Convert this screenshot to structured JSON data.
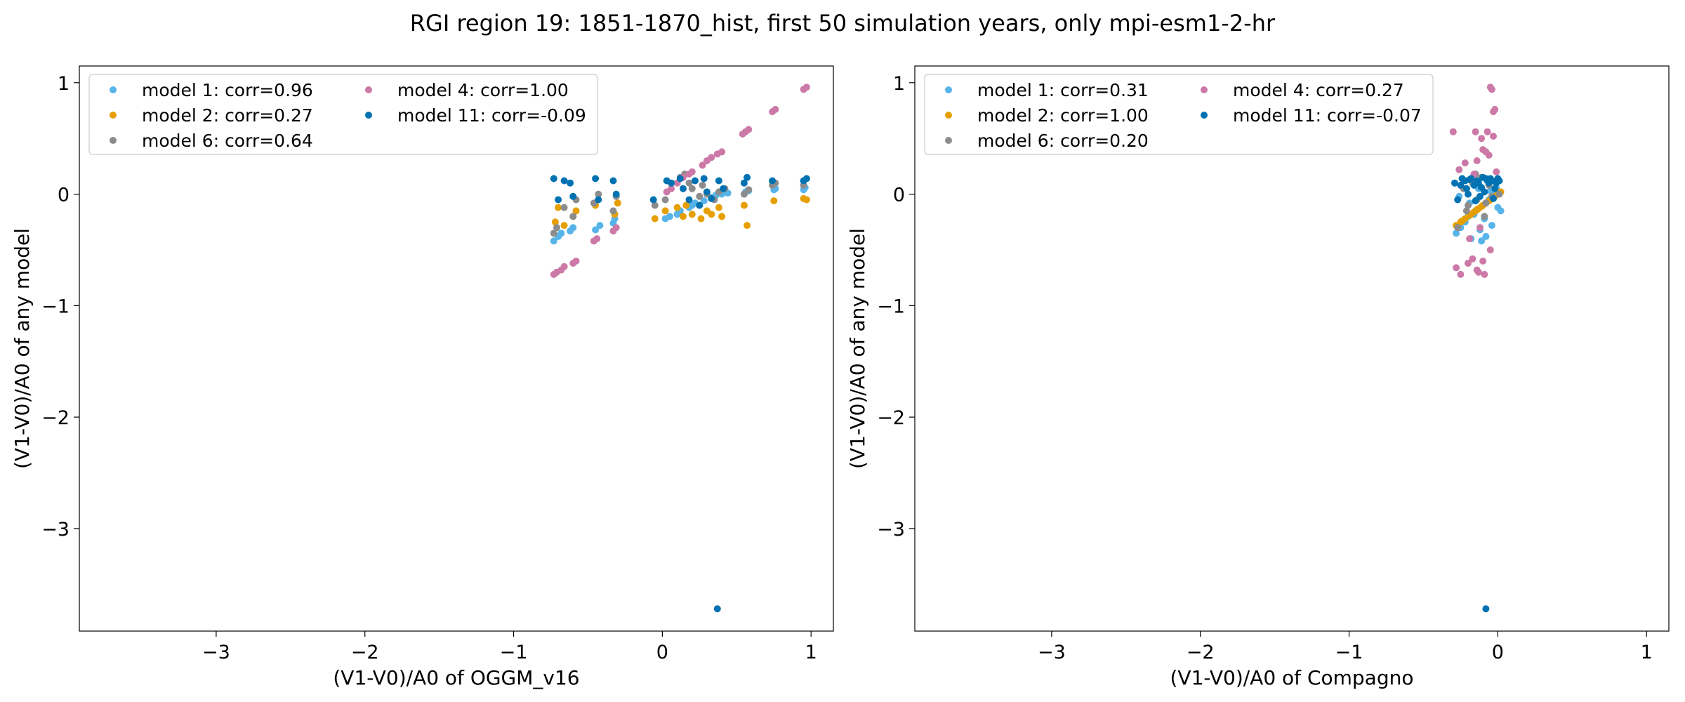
{
  "chart_data": {
    "title": "RGI region 19: 1851-1870_hist, first 50 simulation years, only mpi-esm1-2-hr",
    "panels": [
      {
        "type": "scatter",
        "xlabel": "(V1-V0)/A0 of OGGM_v16",
        "ylabel": "(V1-V0)/A0 of any model",
        "xlim": [
          -3.92,
          1.15
        ],
        "ylim": [
          -3.92,
          1.15
        ],
        "xticks": [
          -3,
          -2,
          -1,
          0,
          1
        ],
        "yticks": [
          -3,
          -2,
          -1,
          0,
          1
        ],
        "legend_loc": "upper-left",
        "series": [
          {
            "name": "model 1: corr=0.96",
            "color": "#56B4E9",
            "x": [
              -0.73,
              -0.7,
              -0.68,
              -0.62,
              -0.6,
              -0.45,
              -0.42,
              -0.33,
              -0.32,
              0.02,
              0.05,
              0.1,
              0.12,
              0.18,
              0.2,
              0.22,
              0.28,
              0.33,
              0.36,
              0.4,
              0.44,
              0.56,
              0.58,
              0.75,
              0.76,
              0.95,
              0.96
            ],
            "y": [
              -0.42,
              -0.38,
              -0.35,
              -0.33,
              -0.3,
              -0.32,
              -0.28,
              -0.26,
              -0.22,
              -0.22,
              -0.2,
              -0.18,
              -0.15,
              -0.12,
              -0.1,
              -0.08,
              -0.06,
              -0.03,
              -0.01,
              0.0,
              0.01,
              0.02,
              0.03,
              0.04,
              0.05,
              0.04,
              0.06
            ]
          },
          {
            "name": "model 2: corr=0.27",
            "color": "#E69F00",
            "x": [
              -0.72,
              -0.7,
              -0.66,
              -0.6,
              -0.58,
              -0.45,
              -0.32,
              -0.3,
              -0.05,
              0.02,
              0.1,
              0.14,
              0.16,
              0.2,
              0.26,
              0.3,
              0.33,
              0.38,
              0.4,
              0.55,
              0.57,
              0.75,
              0.95,
              0.97
            ],
            "y": [
              -0.25,
              -0.12,
              -0.28,
              -0.2,
              -0.15,
              -0.1,
              -0.18,
              -0.08,
              -0.22,
              -0.15,
              -0.12,
              -0.2,
              -0.1,
              -0.18,
              -0.22,
              -0.15,
              -0.18,
              -0.12,
              -0.2,
              -0.1,
              -0.28,
              -0.06,
              -0.04,
              -0.05
            ]
          },
          {
            "name": "model 6: corr=0.64",
            "color": "#8C8C8C",
            "x": [
              -0.73,
              -0.71,
              -0.66,
              -0.6,
              -0.58,
              -0.46,
              -0.43,
              -0.33,
              -0.31,
              -0.05,
              0.02,
              0.12,
              0.15,
              0.18,
              0.2,
              0.25,
              0.27,
              0.3,
              0.35,
              0.38,
              0.42,
              0.55,
              0.58,
              0.74,
              0.76,
              0.95
            ],
            "y": [
              -0.35,
              -0.3,
              -0.12,
              -0.2,
              -0.05,
              -0.08,
              0.0,
              -0.15,
              -0.02,
              -0.1,
              -0.05,
              0.15,
              0.18,
              0.1,
              0.05,
              -0.02,
              0.08,
              0.0,
              -0.05,
              0.02,
              0.05,
              0.0,
              0.04,
              0.08,
              0.1,
              0.08
            ]
          },
          {
            "name": "model 4: corr=1.00",
            "color": "#CC79A7",
            "x": [
              -0.73,
              -0.71,
              -0.68,
              -0.66,
              -0.6,
              -0.58,
              -0.46,
              -0.44,
              -0.33,
              -0.31,
              0.03,
              0.06,
              0.1,
              0.14,
              0.18,
              0.2,
              0.27,
              0.3,
              0.33,
              0.37,
              0.4,
              0.54,
              0.56,
              0.58,
              0.74,
              0.76,
              0.95,
              0.97
            ],
            "y": [
              -0.72,
              -0.7,
              -0.68,
              -0.65,
              -0.62,
              -0.6,
              -0.42,
              -0.4,
              -0.33,
              -0.3,
              0.02,
              0.05,
              0.1,
              0.15,
              0.18,
              0.2,
              0.26,
              0.3,
              0.33,
              0.36,
              0.38,
              0.54,
              0.56,
              0.58,
              0.74,
              0.76,
              0.94,
              0.96
            ]
          },
          {
            "name": "model 11: corr=-0.09",
            "color": "#0072B2",
            "x": [
              -0.73,
              -0.7,
              -0.66,
              -0.62,
              -0.6,
              -0.45,
              -0.43,
              -0.33,
              -0.31,
              -0.06,
              0.03,
              0.06,
              0.12,
              0.14,
              0.18,
              0.22,
              0.25,
              0.28,
              0.3,
              0.33,
              0.38,
              0.41,
              0.55,
              0.57,
              0.74,
              0.95,
              0.97,
              0.37
            ],
            "y": [
              0.14,
              -0.05,
              0.12,
              0.1,
              -0.02,
              0.14,
              -0.05,
              0.12,
              0.0,
              -0.05,
              0.12,
              0.1,
              0.14,
              0.05,
              -0.05,
              0.12,
              -0.1,
              0.14,
              0.02,
              -0.04,
              0.12,
              0.05,
              0.1,
              0.15,
              0.12,
              0.12,
              0.14,
              -3.72
            ]
          }
        ]
      },
      {
        "type": "scatter",
        "xlabel": "(V1-V0)/A0 of Compagno",
        "ylabel": "(V1-V0)/A0 of any model",
        "xlim": [
          -3.92,
          1.15
        ],
        "ylim": [
          -3.92,
          1.15
        ],
        "xticks": [
          -3,
          -2,
          -1,
          0,
          1
        ],
        "yticks": [
          -3,
          -2,
          -1,
          0,
          1
        ],
        "legend_loc": "upper-left",
        "series": [
          {
            "name": "model 1: corr=0.31",
            "color": "#56B4E9",
            "x": [
              -0.28,
              -0.25,
              -0.22,
              -0.2,
              -0.18,
              -0.15,
              -0.12,
              -0.1,
              -0.08,
              -0.06,
              -0.04,
              -0.02,
              0.0,
              0.02,
              -0.26,
              -0.19,
              -0.13,
              -0.09,
              -0.05,
              -0.01,
              -0.16,
              -0.11
            ],
            "y": [
              -0.35,
              -0.3,
              -0.25,
              -0.2,
              -0.4,
              -0.15,
              -0.32,
              -0.1,
              -0.38,
              -0.05,
              -0.28,
              0.0,
              -0.12,
              -0.15,
              -0.02,
              -0.08,
              0.05,
              -0.22,
              0.03,
              0.06,
              -0.18,
              -0.42
            ]
          },
          {
            "name": "model 2: corr=1.00",
            "color": "#E69F00",
            "x": [
              -0.28,
              -0.25,
              -0.22,
              -0.19,
              -0.16,
              -0.13,
              -0.11,
              -0.08,
              -0.06,
              -0.03,
              0.0,
              0.02,
              -0.24,
              -0.18,
              -0.14,
              -0.1,
              -0.05,
              -0.02
            ],
            "y": [
              -0.28,
              -0.25,
              -0.22,
              -0.19,
              -0.16,
              -0.13,
              -0.11,
              -0.08,
              -0.06,
              -0.03,
              0.0,
              0.02,
              -0.24,
              -0.18,
              -0.14,
              -0.1,
              -0.05,
              -0.02
            ]
          },
          {
            "name": "model 6: corr=0.20",
            "color": "#8C8C8C",
            "x": [
              -0.27,
              -0.23,
              -0.2,
              -0.17,
              -0.14,
              -0.11,
              -0.09,
              -0.06,
              -0.04,
              -0.01,
              0.01,
              -0.21,
              -0.15,
              -0.08
            ],
            "y": [
              -0.3,
              0.05,
              -0.1,
              0.1,
              -0.05,
              0.15,
              -0.2,
              0.08,
              -0.02,
              0.12,
              0.0,
              -0.15,
              0.18,
              -0.08
            ]
          },
          {
            "name": "model 4: corr=0.27",
            "color": "#CC79A7",
            "x": [
              -0.3,
              -0.28,
              -0.25,
              -0.22,
              -0.2,
              -0.17,
              -0.15,
              -0.13,
              -0.11,
              -0.09,
              -0.07,
              -0.05,
              -0.04,
              -0.03,
              -0.02,
              -0.01,
              -0.26,
              -0.19,
              -0.14,
              -0.1,
              -0.06,
              -0.12,
              -0.08,
              -0.16,
              -0.05,
              -0.03,
              -0.1,
              -0.14
            ],
            "y": [
              0.56,
              -0.66,
              -0.72,
              0.28,
              -0.62,
              -0.58,
              0.56,
              -0.7,
              0.5,
              -0.72,
              0.56,
              0.96,
              0.94,
              0.74,
              0.76,
              0.2,
              0.22,
              -0.4,
              0.3,
              0.4,
              0.35,
              -0.3,
              0.38,
              0.18,
              -0.5,
              0.52,
              -0.6,
              -0.68
            ]
          },
          {
            "name": "model 11: corr=-0.07",
            "color": "#0072B2",
            "x": [
              -0.29,
              -0.27,
              -0.24,
              -0.22,
              -0.2,
              -0.18,
              -0.16,
              -0.14,
              -0.12,
              -0.1,
              -0.08,
              -0.06,
              -0.04,
              -0.02,
              0.0,
              0.01,
              -0.25,
              -0.19,
              -0.13,
              -0.09,
              -0.05,
              -0.03,
              -0.11,
              -0.07,
              -0.15,
              -0.01,
              -0.21,
              -0.08
            ],
            "y": [
              0.1,
              -0.05,
              0.14,
              0.12,
              0.0,
              0.14,
              0.08,
              0.12,
              -0.02,
              0.15,
              0.14,
              0.1,
              0.12,
              0.05,
              0.14,
              0.12,
              0.08,
              0.13,
              0.1,
              0.02,
              0.14,
              -0.04,
              0.06,
              0.12,
              -0.06,
              0.1,
              0.05,
              -3.72
            ]
          }
        ]
      }
    ]
  }
}
